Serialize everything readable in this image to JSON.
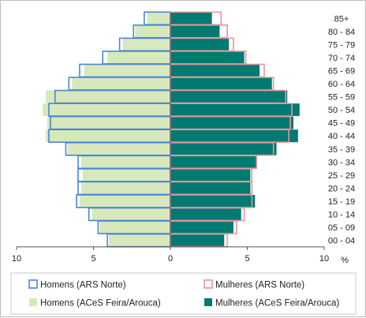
{
  "chart_data": {
    "type": "bar",
    "orientation": "horizontal",
    "subtype": "population-pyramid",
    "title": "",
    "xlabel": "%",
    "ylabel": "",
    "xlim": [
      -10,
      10
    ],
    "x_ticks": [
      {
        "value": -10,
        "label": "10"
      },
      {
        "value": -5,
        "label": "5"
      },
      {
        "value": 0,
        "label": "0"
      },
      {
        "value": 5,
        "label": "5"
      },
      {
        "value": 10,
        "label": "10"
      }
    ],
    "categories": [
      "85+",
      "80 - 84",
      "75 - 79",
      "70 - 74",
      "65 - 69",
      "60 - 64",
      "55 - 59",
      "50 - 54",
      "45 - 49",
      "40 - 44",
      "35 - 39",
      "30 - 34",
      "25 - 29",
      "20 - 24",
      "15 - 19",
      "10 - 14",
      "05 - 09",
      "00 - 04"
    ],
    "series": [
      {
        "name": "Homens (ARS Norte)",
        "side": "left",
        "style": "outline",
        "color": "#4a86d6",
        "values": [
          1.7,
          2.4,
          3.3,
          4.4,
          5.9,
          6.6,
          7.5,
          7.9,
          7.8,
          7.9,
          6.8,
          6.0,
          6.0,
          6.0,
          6.1,
          5.3,
          4.7,
          4.1
        ]
      },
      {
        "name": "Mulheres (ARS Norte)",
        "side": "right",
        "style": "outline",
        "color": "#e8959a",
        "values": [
          3.3,
          3.7,
          4.1,
          4.9,
          6.1,
          6.7,
          7.5,
          7.9,
          7.8,
          7.7,
          6.7,
          5.6,
          5.3,
          5.3,
          5.3,
          4.8,
          4.3,
          3.7
        ]
      },
      {
        "name": "Homens (ACeS Feira/Arouca)",
        "side": "left",
        "style": "filled",
        "color": "#d7e8bd",
        "values": [
          1.5,
          2.3,
          3.1,
          4.1,
          5.6,
          6.4,
          8.1,
          8.3,
          8.0,
          8.1,
          6.7,
          5.8,
          5.7,
          5.8,
          5.9,
          5.1,
          4.6,
          4.0
        ]
      },
      {
        "name": "Mulheres (ACeS Feira/Arouca)",
        "side": "right",
        "style": "filled",
        "color": "#007a72",
        "values": [
          2.7,
          3.2,
          3.8,
          4.8,
          5.8,
          6.6,
          7.6,
          8.4,
          8.0,
          8.3,
          6.9,
          5.6,
          5.2,
          5.2,
          5.5,
          4.6,
          4.1,
          3.5
        ]
      }
    ],
    "grid": false,
    "legend": "bottom"
  }
}
